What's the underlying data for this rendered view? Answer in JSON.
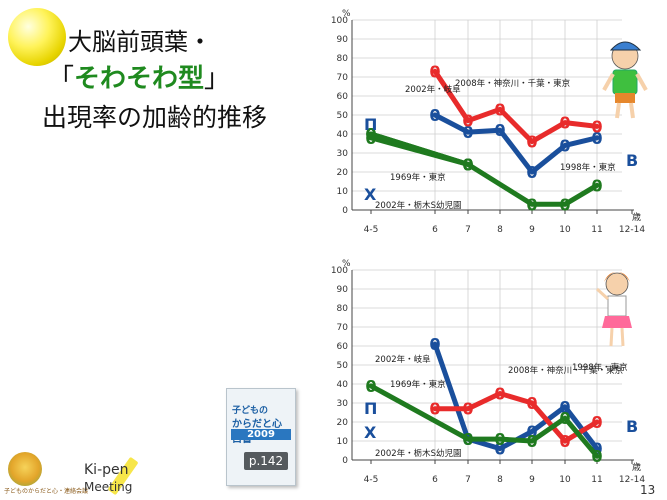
{
  "title": {
    "line1": "大脳前頭葉・",
    "line2_pre": "「",
    "line2_em": "そわそわ型",
    "line2_post": "」",
    "line3": "出現率の加齢的推移"
  },
  "book": {
    "l1": "子どもの",
    "l2": "からだと心 白書",
    "year": "2009",
    "page": "p.142"
  },
  "logo": {
    "brand_top": "Ki-pen",
    "brand_bottom": "Meeting",
    "small": "子どものからだと心・連絡会議"
  },
  "page_number": "13",
  "axis": {
    "x_ticks": [
      "4-5",
      "6",
      "7",
      "8",
      "9",
      "10",
      "11",
      "12-14"
    ],
    "x_unit": "歳",
    "y_ticks": [
      "0",
      "10",
      "20",
      "30",
      "40",
      "50",
      "60",
      "70",
      "80",
      "90",
      "100"
    ],
    "y_unit": "%"
  },
  "chart_data": [
    {
      "type": "line",
      "panel": "boys",
      "ylim": [
        0,
        100
      ],
      "grid": true,
      "series": [
        {
          "name": "1969年・東京",
          "color": "#1f7a1f",
          "x": [
            "4-5",
            "7"
          ],
          "y": [
            40,
            24
          ]
        },
        {
          "name": "1969年・東京",
          "color": "#1f7a1f",
          "x": [
            "4-5",
            "7"
          ],
          "y": [
            38,
            24
          ]
        },
        {
          "name": "1998年・東京",
          "color": "#1a4f9c",
          "x": [
            "6",
            "7",
            "8",
            "9",
            "10",
            "11"
          ],
          "y": [
            50,
            41,
            42,
            20,
            34,
            38
          ]
        },
        {
          "name": "2008年・神奈川・千葉・東京",
          "color": "#e82b2b",
          "x": [
            "6",
            "7",
            "8",
            "9",
            "10",
            "11"
          ],
          "y": [
            73,
            47,
            53,
            36,
            46,
            44
          ]
        },
        {
          "name": "2002年・栃木S幼児園",
          "color": "#1f7a1f",
          "x": [
            "4-5",
            "7",
            "9",
            "10",
            "11"
          ],
          "y": [
            40,
            24,
            3,
            3,
            13
          ]
        }
      ],
      "labels": [
        "2002年・岐阜",
        "2008年・神奈川・千葉・東京",
        "1969年・東京",
        "1998年・東京",
        "2002年・栃木S幼児園"
      ],
      "markers": {
        "pi": "Π",
        "chi": "Χ",
        "beta": "Β"
      }
    },
    {
      "type": "line",
      "panel": "girls",
      "ylim": [
        0,
        100
      ],
      "grid": true,
      "series": [
        {
          "name": "1998年・東京",
          "color": "#1a4f9c",
          "x": [
            "6",
            "7",
            "8",
            "9",
            "10",
            "11"
          ],
          "y": [
            61,
            11,
            6,
            15,
            28,
            6
          ]
        },
        {
          "name": "2008年・神奈川・千葉・東京",
          "color": "#e82b2b",
          "x": [
            "6",
            "7",
            "8",
            "9",
            "10",
            "11"
          ],
          "y": [
            27,
            27,
            35,
            30,
            10,
            20
          ]
        },
        {
          "name": "2002年・栃木S幼児園",
          "color": "#1f7a1f",
          "x": [
            "4-5",
            "7",
            "8",
            "9",
            "10",
            "11"
          ],
          "y": [
            39,
            11,
            11,
            10,
            22,
            2
          ]
        }
      ],
      "labels": [
        "2002年・岐阜",
        "2008年・神奈川・千葉・東京",
        "1969年・東京",
        "1998年・東京",
        "2002年・栃木S幼児園"
      ],
      "markers": {
        "pi": "Π",
        "chi": "Χ",
        "beta": "Β"
      }
    }
  ]
}
